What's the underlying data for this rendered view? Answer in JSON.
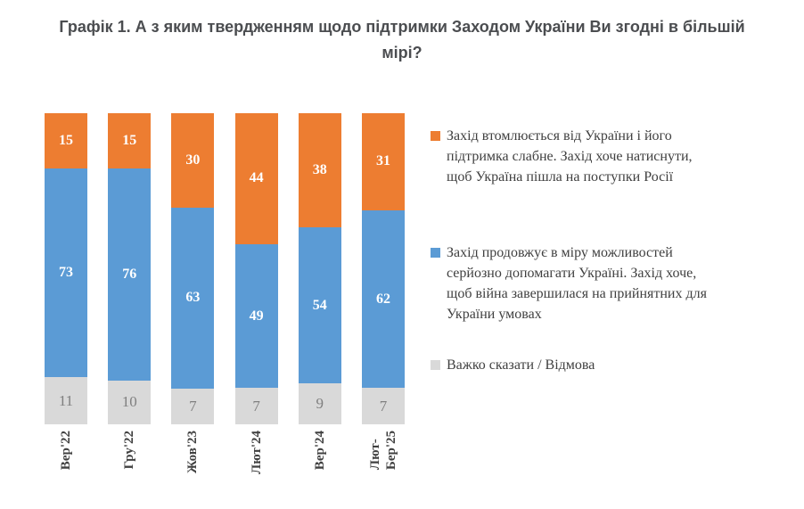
{
  "title": {
    "text": "Графік 1. А з яким твердженням щодо підтримки Заходом України Ви згодні в більшій мірі?",
    "display": "Графік 1. А з яким твердженням щодо підтримки Заходом України Ви згодні в більшій\nмірі?"
  },
  "chart_data": {
    "type": "bar",
    "subtype": "stacked-100-percent",
    "title": "Графік 1. А з яким твердженням щодо підтримки Заходом України Ви згодні в більшій мірі?",
    "unit": "percent",
    "ylim": [
      0,
      100
    ],
    "grid": false,
    "legend_position": "right",
    "categories": [
      "Вер'22",
      "Гру'22",
      "Жов'23",
      "Лют'24",
      "Вер'24",
      "Лют-Бер'25"
    ],
    "categories_display": [
      [
        "Вер'22"
      ],
      [
        "Гру'22"
      ],
      [
        "Жов'23"
      ],
      [
        "Лют'24"
      ],
      [
        "Вер'24"
      ],
      [
        "Лют-",
        "Бер'25"
      ]
    ],
    "series": [
      {
        "key": "hard-to-say",
        "name": "Важко сказати / Відмова",
        "legend_lines": [
          "Важко сказати / Відмова"
        ],
        "color": "#d9d9d9",
        "label_color": "#7f7f7f",
        "label_bold": false,
        "values": [
          11,
          10,
          7,
          7,
          9,
          7
        ]
      },
      {
        "key": "west-helps",
        "name": "Захід продовжує в міру можливостей серйозно допомагати Україні. Захід хоче, щоб війна завершилася на прийнятних для України умовах",
        "legend_lines": [
          "Захід продовжує в міру можливостей",
          "серйозно допомагати Україні. Захід хоче,",
          "щоб війна завершилася на прийнятних для",
          "України умовах"
        ],
        "color": "#5b9bd5",
        "label_color": "#ffffff",
        "label_bold": true,
        "values": [
          73,
          76,
          63,
          49,
          54,
          62
        ]
      },
      {
        "key": "west-tired",
        "name": "Захід втомлюється від України і його підтримка слабне. Захід хоче натиснути, щоб Україна пішла на поступки Росії",
        "legend_lines": [
          "Захід втомлюється від України і його",
          "підтримка слабне. Захід хоче натиснути,",
          "щоб Україна пішла на поступки Росії"
        ],
        "color": "#ed7d31",
        "label_color": "#ffffff",
        "label_bold": true,
        "values": [
          15,
          15,
          30,
          44,
          38,
          31
        ]
      }
    ],
    "legend_order_top_to_bottom": [
      2,
      1,
      0
    ]
  },
  "colors": {
    "orange": "#ed7d31",
    "blue": "#5b9bd5",
    "gray": "#d9d9d9",
    "title_text": "#4b4d50",
    "axis_text": "#404040",
    "legend_text": "#404040",
    "muted_value_text": "#7f7f7f"
  }
}
